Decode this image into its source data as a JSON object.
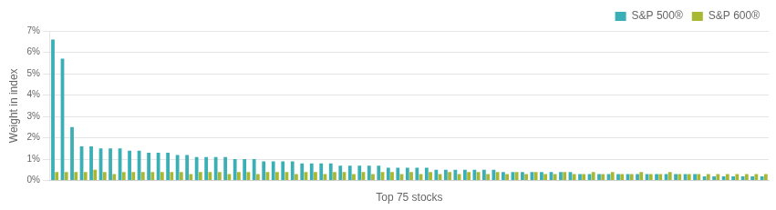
{
  "chart_data": {
    "type": "bar",
    "xlabel": "Top 75 stocks",
    "ylabel": "Weight in index",
    "categories": [
      null,
      null,
      null,
      null,
      null,
      null,
      null,
      null,
      null,
      null,
      null,
      null,
      null,
      null,
      null,
      null,
      null,
      null,
      null,
      null,
      null,
      null,
      null,
      null,
      null,
      null,
      null,
      null,
      null,
      null,
      null,
      null,
      null,
      null,
      null,
      null,
      null,
      null,
      null,
      null,
      null,
      null,
      null,
      null,
      null,
      null,
      null,
      null,
      null,
      null,
      null,
      null,
      null,
      null,
      null,
      null,
      null,
      null,
      null,
      null,
      null,
      null,
      null,
      null,
      null,
      null,
      null,
      null,
      null,
      null,
      null,
      null,
      null,
      null,
      null
    ],
    "series": [
      {
        "name": "S&P 500®",
        "color": "#3AAFB5",
        "values": [
          0.066,
          0.057,
          0.025,
          0.016,
          0.016,
          0.015,
          0.015,
          0.015,
          0.014,
          0.014,
          0.013,
          0.013,
          0.013,
          0.012,
          0.012,
          0.011,
          0.011,
          0.011,
          0.011,
          0.01,
          0.01,
          0.01,
          0.009,
          0.009,
          0.009,
          0.009,
          0.008,
          0.008,
          0.008,
          0.008,
          0.007,
          0.007,
          0.007,
          0.007,
          0.007,
          0.006,
          0.006,
          0.006,
          0.006,
          0.006,
          0.005,
          0.005,
          0.005,
          0.005,
          0.005,
          0.005,
          0.005,
          0.004,
          0.004,
          0.004,
          0.004,
          0.004,
          0.004,
          0.004,
          0.004,
          0.003,
          0.003,
          0.003,
          0.003,
          0.003,
          0.003,
          0.003,
          0.003,
          0.003,
          0.003,
          0.003,
          0.003,
          0.003,
          0.002,
          0.002,
          0.002,
          0.002,
          0.002,
          0.002,
          0.002
        ]
      },
      {
        "name": "S&P 600®",
        "color": "#A8B832",
        "values": [
          0.004,
          0.004,
          0.004,
          0.004,
          0.005,
          0.004,
          0.003,
          0.004,
          0.004,
          0.004,
          0.004,
          0.004,
          0.004,
          0.004,
          0.003,
          0.004,
          0.004,
          0.004,
          0.003,
          0.004,
          0.004,
          0.003,
          0.004,
          0.004,
          0.004,
          0.003,
          0.004,
          0.004,
          0.003,
          0.004,
          0.004,
          0.003,
          0.004,
          0.003,
          0.004,
          0.004,
          0.003,
          0.004,
          0.003,
          0.004,
          0.003,
          0.004,
          0.003,
          0.004,
          0.004,
          0.003,
          0.004,
          0.003,
          0.004,
          0.003,
          0.004,
          0.003,
          0.003,
          0.004,
          0.003,
          0.003,
          0.004,
          0.003,
          0.004,
          0.003,
          0.003,
          0.004,
          0.003,
          0.003,
          0.004,
          0.003,
          0.003,
          0.003,
          0.003,
          0.003,
          0.003,
          0.003,
          0.003,
          0.003,
          0.003
        ]
      }
    ],
    "ylim": [
      0,
      0.07
    ],
    "yticks": [
      {
        "value": 0.0,
        "label": "0%"
      },
      {
        "value": 0.01,
        "label": "1%"
      },
      {
        "value": 0.02,
        "label": "2%"
      },
      {
        "value": 0.03,
        "label": "3%"
      },
      {
        "value": 0.04,
        "label": "4%"
      },
      {
        "value": 0.05,
        "label": "5%"
      },
      {
        "value": 0.06,
        "label": "6%"
      },
      {
        "value": 0.07,
        "label": "7%"
      }
    ],
    "grid": true,
    "legend": "upper right",
    "tick_labels": "y"
  }
}
